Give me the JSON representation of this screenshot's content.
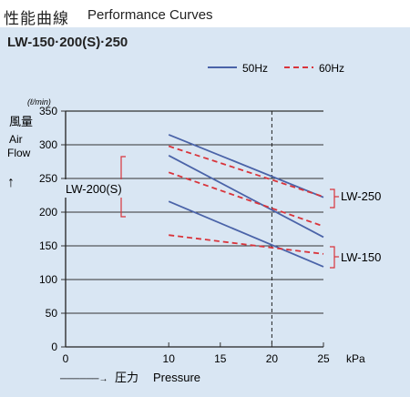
{
  "header": {
    "title_jp": "性能曲線",
    "title_en": "Performance Curves"
  },
  "models_label": "LW-150·200(S)·250",
  "y_axis": {
    "unit": "(ℓ/min)",
    "label_jp": "風量",
    "label_en_1": "Air",
    "label_en_2": "Flow",
    "arrow": "↑"
  },
  "x_axis": {
    "unit": "kPa",
    "arrow": "──────→",
    "label_jp": "圧力",
    "label_en": "Pressure"
  },
  "legend": [
    {
      "name": "50Hz",
      "style": "solid",
      "color": "#4a63a8"
    },
    {
      "name": "60Hz",
      "style": "dashed",
      "color": "#d9343b"
    }
  ],
  "chart_data": {
    "type": "line",
    "title": "",
    "xlabel": "圧力 Pressure",
    "ylabel": "風量 Air Flow",
    "x_unit": "kPa",
    "y_unit": "ℓ/min",
    "xlim": [
      0,
      25
    ],
    "ylim": [
      0,
      350
    ],
    "x_ticks": [
      "0",
      "10",
      "15",
      "20",
      "25"
    ],
    "y_ticks": [
      "0",
      "50",
      "100",
      "150",
      "200",
      "250",
      "300",
      "350"
    ],
    "grid": "horizontal",
    "reference_line_x": 20,
    "series": [
      {
        "model": "LW-250",
        "freq": "50Hz",
        "x": [
          10,
          25
        ],
        "y": [
          315,
          222
        ]
      },
      {
        "model": "LW-250",
        "freq": "60Hz",
        "x": [
          10,
          25
        ],
        "y": [
          298,
          223
        ]
      },
      {
        "model": "LW-200(S)",
        "freq": "50Hz",
        "x": [
          10,
          25
        ],
        "y": [
          284,
          163
        ]
      },
      {
        "model": "LW-200(S)",
        "freq": "60Hz",
        "x": [
          10,
          25
        ],
        "y": [
          259,
          179
        ]
      },
      {
        "model": "LW-150",
        "freq": "50Hz",
        "x": [
          10,
          25
        ],
        "y": [
          216,
          119
        ]
      },
      {
        "model": "LW-150",
        "freq": "60Hz",
        "x": [
          10,
          25
        ],
        "y": [
          166,
          138
        ]
      }
    ],
    "annotations": [
      "LW-200(S)",
      "LW-250",
      "LW-150"
    ]
  }
}
